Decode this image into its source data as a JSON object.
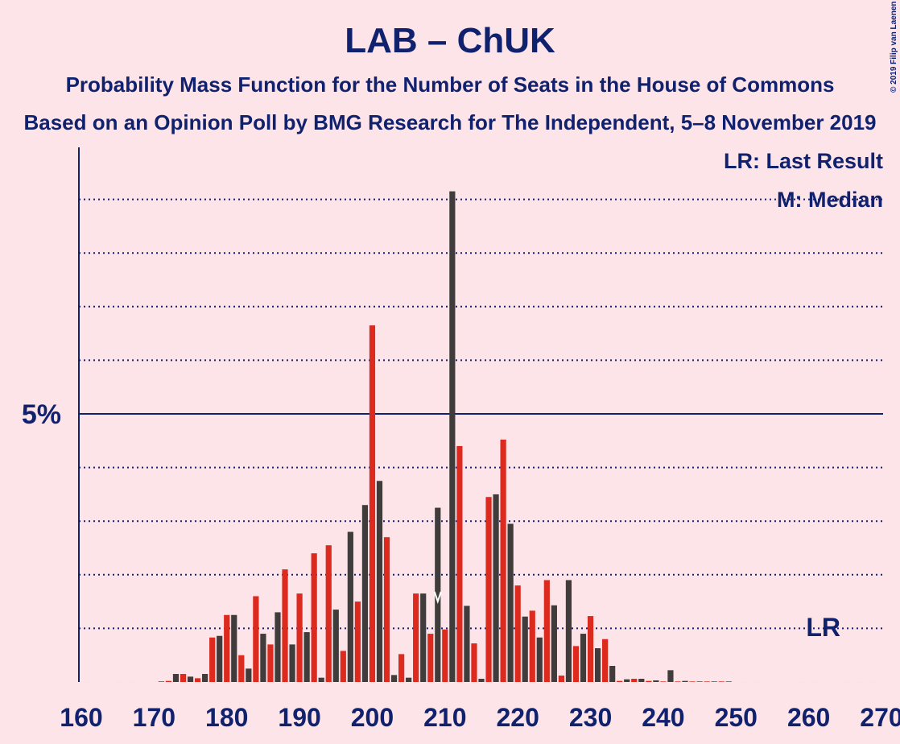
{
  "chart_data": {
    "type": "bar",
    "title": "LAB – ChUK",
    "subtitle": "Probability Mass Function for the Number of Seats in the House of Commons",
    "subtitle2": "Based on an Opinion Poll by BMG Research for The Independent, 5–8 November 2019",
    "copyright": "© 2019 Filip van Laenen",
    "legend": [
      "LR: Last Result",
      "M: Median"
    ],
    "series": [
      {
        "color": "#dd2a1f",
        "x": [
          160,
          162,
          164,
          166,
          168,
          170,
          172,
          174,
          176,
          178,
          180,
          182,
          184,
          186,
          188,
          190,
          192,
          194,
          196,
          198,
          200,
          202,
          204,
          206,
          208,
          210,
          212,
          214,
          216,
          218,
          220,
          222,
          224,
          226,
          228,
          230,
          232,
          234,
          236,
          238,
          240,
          242,
          244,
          246,
          248,
          250,
          252,
          254,
          256,
          258,
          260,
          262,
          264,
          266,
          268,
          270
        ],
        "values": [
          0,
          0,
          0,
          0,
          0,
          0,
          0.02,
          0.15,
          0.07,
          0.83,
          1.25,
          0.5,
          1.6,
          0.7,
          2.1,
          1.65,
          2.4,
          2.55,
          0.58,
          1.5,
          6.65,
          2.7,
          0.52,
          1.65,
          0.9,
          0.98,
          4.4,
          0.72,
          3.45,
          4.52,
          1.8,
          1.33,
          1.9,
          0.12,
          0.67,
          1.23,
          0.8,
          0.02,
          0.06,
          0.02,
          0.01,
          0.01,
          0.01,
          0.01,
          0.01,
          0,
          0,
          0,
          0,
          0,
          0,
          0,
          0,
          0,
          0,
          0
        ]
      },
      {
        "color": "#403c3c",
        "x": [
          161,
          163,
          165,
          167,
          169,
          171,
          173,
          175,
          177,
          179,
          181,
          183,
          185,
          187,
          189,
          191,
          193,
          195,
          197,
          199,
          201,
          203,
          205,
          207,
          209,
          211,
          213,
          215,
          217,
          219,
          221,
          223,
          225,
          227,
          229,
          231,
          233,
          235,
          237,
          239,
          241,
          243,
          245,
          247,
          249,
          251,
          253,
          255,
          257,
          259,
          261,
          263,
          265,
          267,
          269
        ],
        "values": [
          0,
          0,
          0,
          0,
          0,
          0.01,
          0.15,
          0.1,
          0.15,
          0.86,
          1.25,
          0.25,
          0.9,
          1.3,
          0.7,
          0.93,
          0.08,
          1.35,
          2.8,
          3.3,
          3.75,
          0.13,
          0.08,
          1.65,
          3.25,
          9.15,
          1.42,
          0.06,
          3.5,
          2.95,
          1.22,
          0.83,
          1.43,
          1.9,
          0.9,
          0.63,
          0.3,
          0.05,
          0.06,
          0.03,
          0.22,
          0.02,
          0.01,
          0.01,
          0.01,
          0,
          0,
          0,
          0,
          0,
          0,
          0,
          0,
          0,
          0
        ]
      }
    ],
    "median": 209,
    "last_result": 262,
    "last_result_label": "LR",
    "xlim": [
      160,
      270
    ],
    "xticks": [
      160,
      170,
      180,
      190,
      200,
      210,
      220,
      230,
      240,
      250,
      260,
      270
    ],
    "ylim": [
      0,
      10
    ],
    "yticks": [
      {
        "value": 5,
        "label": "5%"
      }
    ],
    "minor_grid": [
      1,
      2,
      3,
      4,
      6,
      7,
      8,
      9
    ]
  }
}
